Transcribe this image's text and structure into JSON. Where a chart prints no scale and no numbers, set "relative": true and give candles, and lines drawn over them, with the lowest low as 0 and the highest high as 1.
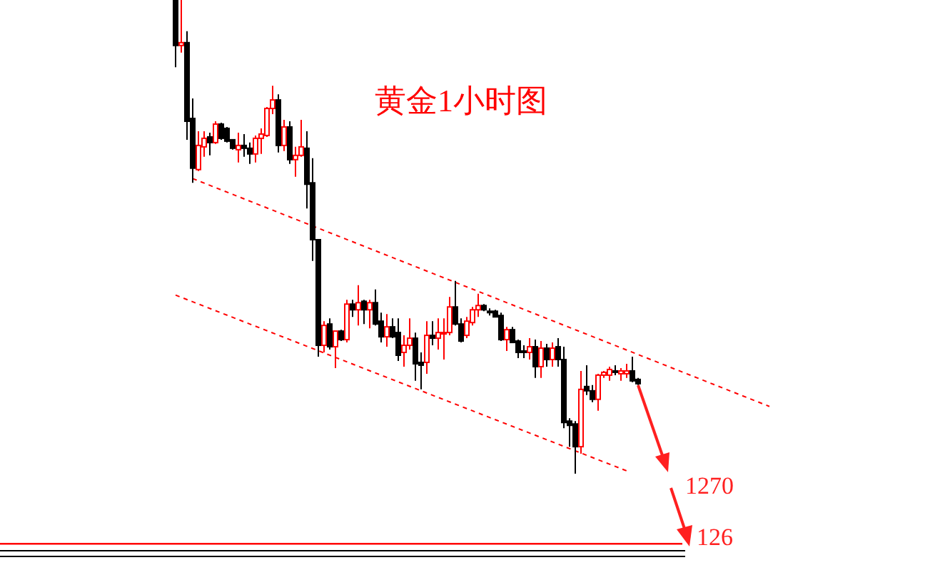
{
  "chart_data": {
    "type": "candlestick",
    "title": "黄金1小时图",
    "relative": true,
    "categories": [
      null,
      null,
      null,
      null,
      null,
      null,
      null,
      null,
      null,
      null,
      null,
      null,
      null,
      null,
      null,
      null,
      null,
      null,
      null,
      null,
      null,
      null,
      null,
      null,
      null,
      null,
      null,
      null,
      null,
      null,
      null,
      null,
      null,
      null,
      null,
      null,
      null,
      null,
      null,
      null,
      null,
      null,
      null,
      null,
      null,
      null,
      null,
      null,
      null,
      null,
      null,
      null,
      null,
      null,
      null,
      null,
      null,
      null,
      null,
      null,
      null,
      null,
      null,
      null,
      null,
      null,
      null,
      null,
      null,
      null,
      null,
      null,
      null,
      null,
      null,
      null,
      null,
      null,
      null,
      null,
      null,
      null,
      null,
      null,
      null,
      null,
      null,
      null,
      null,
      null,
      null,
      null,
      null,
      null,
      null,
      null,
      null,
      null,
      null,
      null,
      null,
      null,
      null,
      null,
      null
    ],
    "ohlc": [
      [
        1,
        1,
        0.858,
        0.904
      ],
      [
        0.904,
        1,
        0.889,
        0.91
      ],
      [
        0.91,
        0.934,
        0.705,
        0.744
      ],
      [
        0.75,
        0.792,
        0.614,
        0.645
      ],
      [
        0.642,
        0.723,
        0.639,
        0.693
      ],
      [
        0.69,
        0.723,
        0.669,
        0.708
      ],
      [
        0.711,
        0.72,
        0.672,
        0.699
      ],
      [
        0.699,
        0.744,
        0.696,
        0.738
      ],
      [
        0.738,
        0.741,
        0.705,
        0.708
      ],
      [
        0.729,
        0.732,
        0.699,
        0.702
      ],
      [
        0.705,
        0.705,
        0.684,
        0.687
      ],
      [
        0.684,
        0.72,
        0.657,
        0.693
      ],
      [
        0.693,
        0.717,
        0.669,
        0.687
      ],
      [
        0.687,
        0.699,
        0.654,
        0.675
      ],
      [
        0.675,
        0.714,
        0.657,
        0.708
      ],
      [
        0.708,
        0.729,
        0.675,
        0.717
      ],
      [
        0.714,
        0.774,
        0.711,
        0.771
      ],
      [
        0.771,
        0.819,
        0.759,
        0.789
      ],
      [
        0.789,
        0.801,
        0.678,
        0.693
      ],
      [
        0.693,
        0.747,
        0.681,
        0.732
      ],
      [
        0.732,
        0.744,
        0.654,
        0.663
      ],
      [
        0.663,
        0.69,
        0.627,
        0.672
      ],
      [
        0.672,
        0.747,
        0.669,
        0.69
      ],
      [
        0.687,
        0.723,
        0.56,
        0.611
      ],
      [
        0.614,
        0.666,
        0.449,
        0.494
      ],
      [
        0.494,
        0.494,
        0.247,
        0.271
      ],
      [
        0.271,
        0.322,
        0.256,
        0.313
      ],
      [
        0.316,
        0.328,
        0.262,
        0.268
      ],
      [
        0.268,
        0.301,
        0.223,
        0.301
      ],
      [
        0.301,
        0.304,
        0.28,
        0.283
      ],
      [
        0.283,
        0.367,
        0.277,
        0.358
      ],
      [
        0.358,
        0.367,
        0.331,
        0.346
      ],
      [
        0.346,
        0.398,
        0.313,
        0.361
      ],
      [
        0.364,
        0.367,
        0.316,
        0.346
      ],
      [
        0.346,
        0.367,
        0.307,
        0.361
      ],
      [
        0.361,
        0.389,
        0.313,
        0.316
      ],
      [
        0.322,
        0.34,
        0.277,
        0.289
      ],
      [
        0.289,
        0.337,
        0.268,
        0.31
      ],
      [
        0.31,
        0.328,
        0.286,
        0.289
      ],
      [
        0.298,
        0.328,
        0.238,
        0.25
      ],
      [
        0.256,
        0.292,
        0.226,
        0.271
      ],
      [
        0.271,
        0.328,
        0.262,
        0.286
      ],
      [
        0.286,
        0.298,
        0.196,
        0.232
      ],
      [
        0.235,
        0.256,
        0.178,
        0.229
      ],
      [
        0.235,
        0.322,
        0.211,
        0.292
      ],
      [
        0.292,
        0.322,
        0.271,
        0.286
      ],
      [
        0.286,
        0.328,
        0.262,
        0.298
      ],
      [
        0.295,
        0.328,
        0.241,
        0.298
      ],
      [
        0.298,
        0.373,
        0.292,
        0.352
      ],
      [
        0.352,
        0.407,
        0.313,
        0.316
      ],
      [
        0.316,
        0.328,
        0.277,
        0.28
      ],
      [
        0.292,
        0.331,
        0.286,
        0.322
      ],
      [
        0.319,
        0.352,
        0.313,
        0.346
      ],
      [
        0.346,
        0.38,
        0.331,
        0.355
      ],
      [
        0.355,
        0.358,
        0.343,
        0.346
      ],
      [
        0.343,
        0.349,
        0.334,
        0.34
      ],
      [
        0.343,
        0.346,
        0.331,
        0.331
      ],
      [
        0.334,
        0.34,
        0.28,
        0.283
      ],
      [
        0.283,
        0.31,
        0.259,
        0.304
      ],
      [
        0.304,
        0.31,
        0.277,
        0.277
      ],
      [
        0.28,
        0.283,
        0.244,
        0.256
      ],
      [
        0.259,
        0.271,
        0.244,
        0.256
      ],
      [
        0.256,
        0.286,
        0.241,
        0.268
      ],
      [
        0.268,
        0.283,
        0.202,
        0.226
      ],
      [
        0.226,
        0.28,
        0.202,
        0.265
      ],
      [
        0.265,
        0.274,
        0.226,
        0.241
      ],
      [
        0.241,
        0.277,
        0.226,
        0.265
      ],
      [
        0.268,
        0.286,
        0.226,
        0.241
      ],
      [
        0.241,
        0.268,
        0.096,
        0.108
      ],
      [
        0.111,
        0.117,
        0.057,
        0.102
      ],
      [
        0.105,
        0.111,
        0,
        0.057
      ],
      [
        0.057,
        0.217,
        0.042,
        0.178
      ],
      [
        0.184,
        0.229,
        0.166,
        0.175
      ],
      [
        0.175,
        0.187,
        0.151,
        0.157
      ],
      [
        0.157,
        0.211,
        0.133,
        0.208
      ],
      [
        0.208,
        0.217,
        0.202,
        0.214
      ],
      [
        0.208,
        0.226,
        0.196,
        0.22
      ],
      [
        0.217,
        0.229,
        0.208,
        0.214
      ],
      [
        0.211,
        0.223,
        0.196,
        0.217
      ],
      [
        0.211,
        0.232,
        0.202,
        0.217
      ],
      [
        0.217,
        0.247,
        0.193,
        0.196
      ],
      [
        0.199,
        0.202,
        0.187,
        0.19
      ],
      null,
      null,
      null,
      null,
      null,
      null,
      null,
      null,
      null,
      null,
      null,
      null,
      null,
      null,
      null,
      null,
      null,
      null,
      null,
      null,
      null,
      null,
      null
    ],
    "series": [
      {
        "type": "line",
        "color": "#ff0000",
        "line_style": "dashed",
        "values": [
          null,
          null,
          null,
          0.623,
          null,
          null,
          null,
          null,
          null,
          null,
          null,
          null,
          null,
          null,
          null,
          null,
          null,
          null,
          null,
          null,
          null,
          null,
          null,
          null,
          null,
          null,
          null,
          null,
          null,
          null,
          null,
          null,
          null,
          null,
          null,
          null,
          null,
          null,
          null,
          null,
          null,
          null,
          null,
          null,
          null,
          null,
          null,
          null,
          null,
          null,
          null,
          null,
          null,
          null,
          null,
          null,
          null,
          null,
          null,
          null,
          null,
          null,
          null,
          null,
          null,
          null,
          null,
          null,
          null,
          null,
          null,
          null,
          null,
          null,
          null,
          null,
          null,
          null,
          null,
          null,
          null,
          null,
          null,
          null,
          null,
          null,
          null,
          null,
          null,
          null,
          null,
          null,
          null,
          null,
          null,
          null,
          null,
          null,
          null,
          null,
          null,
          null,
          null,
          null,
          0.142
        ]
      },
      {
        "type": "line",
        "color": "#ff0000",
        "line_style": "dashed",
        "values": [
          0.377,
          null,
          null,
          null,
          null,
          null,
          null,
          null,
          null,
          null,
          null,
          null,
          null,
          null,
          null,
          null,
          null,
          null,
          null,
          null,
          null,
          null,
          null,
          null,
          null,
          null,
          null,
          null,
          null,
          null,
          null,
          null,
          null,
          null,
          null,
          null,
          null,
          null,
          null,
          null,
          null,
          null,
          null,
          null,
          null,
          null,
          null,
          null,
          null,
          null,
          null,
          null,
          null,
          null,
          null,
          null,
          null,
          null,
          null,
          null,
          null,
          null,
          null,
          null,
          null,
          null,
          null,
          null,
          null,
          null,
          null,
          null,
          null,
          null,
          null,
          null,
          null,
          null,
          null,
          0.006,
          null,
          null,
          null,
          null,
          null,
          null,
          null,
          null,
          null,
          null,
          null,
          null,
          null,
          null,
          null,
          null,
          null,
          null,
          null,
          null,
          null,
          null,
          null,
          null,
          null
        ]
      }
    ],
    "ref_lines": [
      {
        "axis": "y",
        "value": -0.148,
        "color": "#ff0000"
      }
    ],
    "annotations": [
      "1270",
      "126"
    ]
  }
}
